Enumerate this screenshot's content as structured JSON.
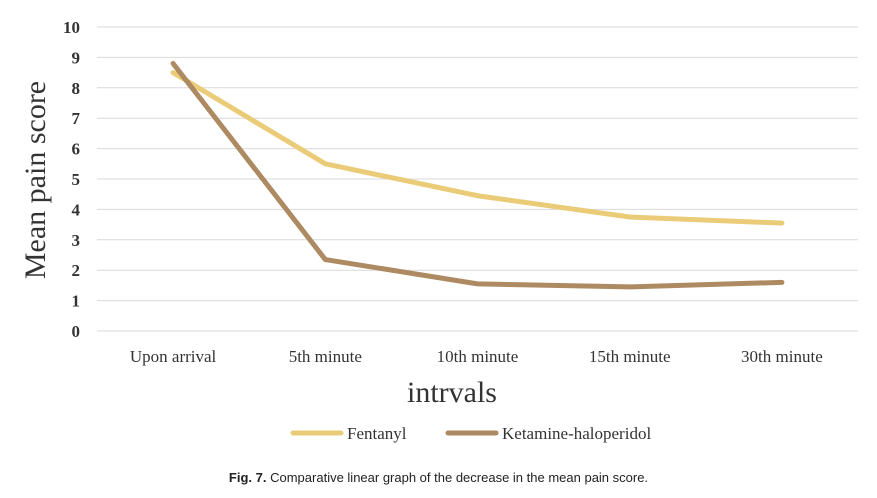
{
  "chart_data": {
    "type": "line",
    "title": "",
    "xlabel": "intrvals",
    "ylabel": "Mean pain score",
    "categories": [
      "Upon arrival",
      "5th minute",
      "10th minute",
      "15th minute",
      "30th minute"
    ],
    "ylim": [
      0,
      10
    ],
    "yticks": [
      0,
      1,
      2,
      3,
      4,
      5,
      6,
      7,
      8,
      9,
      10
    ],
    "grid": true,
    "legend": "bottom",
    "series": [
      {
        "name": "Fentanyl",
        "color": "#EACC78",
        "values": [
          8.5,
          5.5,
          4.45,
          3.75,
          3.55
        ]
      },
      {
        "name": "Ketamine-haloperidol",
        "color": "#AD8A62",
        "values": [
          8.8,
          2.35,
          1.55,
          1.45,
          1.6
        ]
      }
    ]
  },
  "caption": {
    "label": "Fig. 7.",
    "text": "Comparative linear graph of the decrease in the mean pain score."
  }
}
